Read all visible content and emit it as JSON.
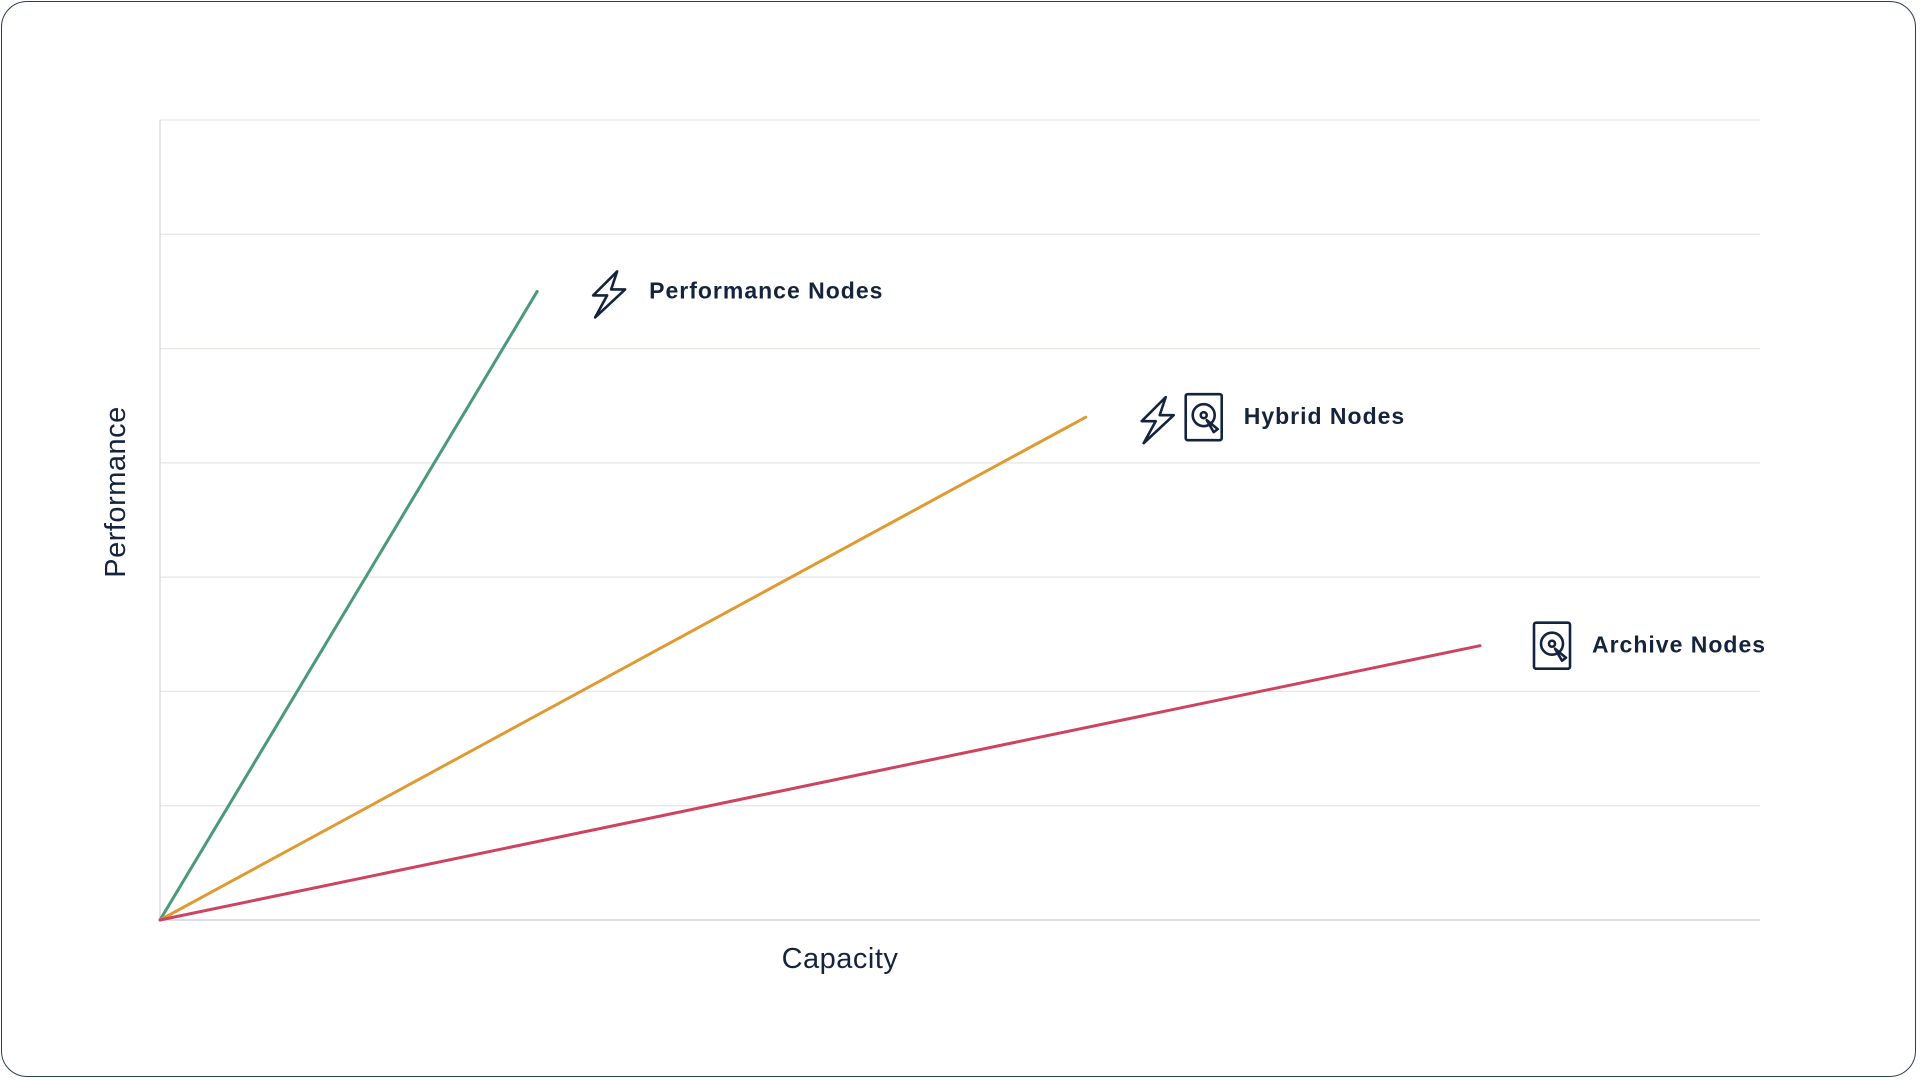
{
  "chart_data": {
    "type": "line",
    "title": "",
    "xlabel": "Capacity",
    "ylabel": "Performance",
    "xlim": [
      0,
      14
    ],
    "ylim": [
      0,
      7
    ],
    "grid": true,
    "ticks_labeled": false,
    "series": [
      {
        "name": "Performance Nodes",
        "color": "#4a9a7a",
        "icons": [
          "lightning-icon"
        ],
        "points": [
          [
            0,
            0
          ],
          [
            3.3,
            5.5
          ]
        ]
      },
      {
        "name": "Hybrid Nodes",
        "color": "#e09a32",
        "icons": [
          "lightning-icon",
          "hard-drive-icon"
        ],
        "points": [
          [
            0,
            0
          ],
          [
            8.1,
            4.4
          ]
        ]
      },
      {
        "name": "Archive Nodes",
        "color": "#cd4360",
        "icons": [
          "hard-drive-icon"
        ],
        "points": [
          [
            0,
            0
          ],
          [
            11.55,
            2.4
          ]
        ]
      }
    ]
  }
}
